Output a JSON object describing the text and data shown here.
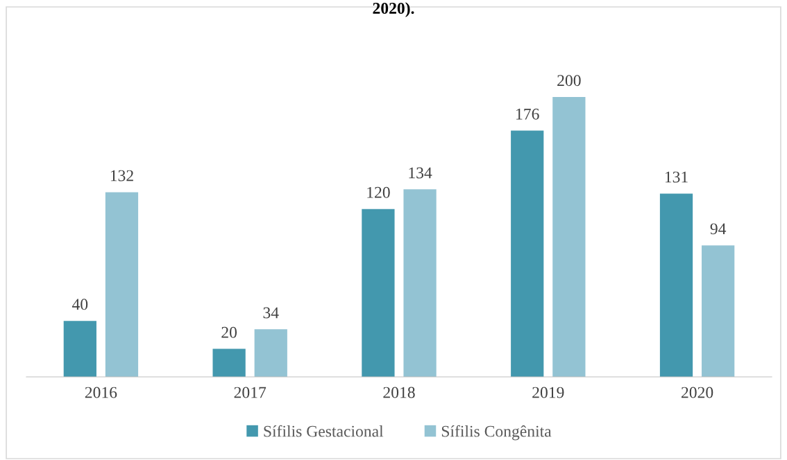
{
  "chart_data": {
    "type": "bar",
    "title": "2020).",
    "categories": [
      "2016",
      "2017",
      "2018",
      "2019",
      "2020"
    ],
    "series": [
      {
        "name": "Sífilis Gestacional",
        "color": "#4398ae",
        "values": [
          40,
          20,
          120,
          176,
          131
        ]
      },
      {
        "name": "Sífilis Congênita",
        "color": "#93c3d3",
        "values": [
          132,
          34,
          134,
          200,
          94
        ]
      }
    ],
    "data_labels": true,
    "legend": "bottom",
    "grid": false,
    "tick_labels": "x"
  }
}
